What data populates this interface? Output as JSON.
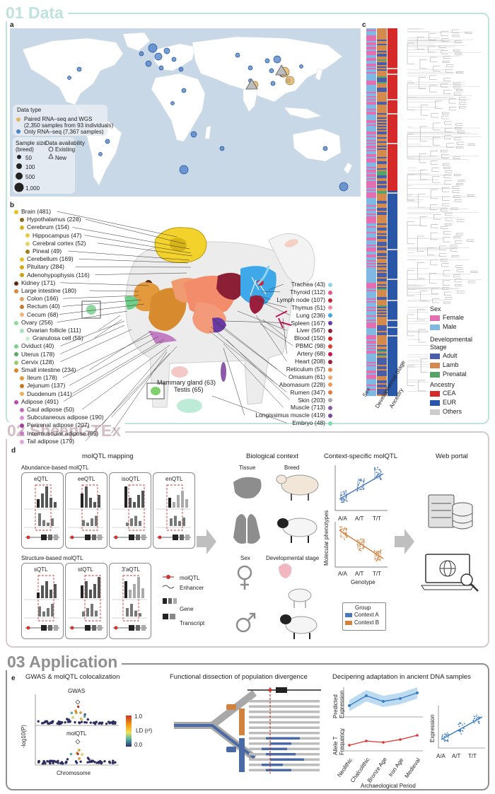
{
  "sections": {
    "s1": "01 Data",
    "s2": "02 SheepGTEx",
    "s3": "03 Application"
  },
  "panels": {
    "a": "a",
    "b": "b",
    "c": "c",
    "d": "d",
    "e": "e"
  },
  "map_legend": {
    "data_type_title": "Data type",
    "paired": "Paired RNA–seq and WGS",
    "paired_detail": "(2,350 samples from 93 individuals)",
    "only_rna": "Only RNA–seq (7,367 samples)",
    "sample_size_title": "Sample size",
    "sample_size_sub": "(breed)",
    "sizes": [
      "50",
      "100",
      "500",
      "1,000"
    ],
    "availability_title": "Data availability",
    "existing": "Existing",
    "new": "New"
  },
  "tissues_left": [
    {
      "label": "Brain (481)",
      "color": "#e7c21f",
      "indent": 0
    },
    {
      "label": "Hypothalamus (228)",
      "color": "#8a6a1c",
      "indent": 1
    },
    {
      "label": "Cerebrum (154)",
      "color": "#d4b21a",
      "indent": 1
    },
    {
      "label": "Hippocampus (47)",
      "color": "#e8c949",
      "indent": 2
    },
    {
      "label": "Cerebral cortex (52)",
      "color": "#e6d36c",
      "indent": 2
    },
    {
      "label": "Pineal (49)",
      "color": "#a07e16",
      "indent": 2
    },
    {
      "label": "Cerebellum (169)",
      "color": "#e3c12b",
      "indent": 1
    },
    {
      "label": "Pituitary (284)",
      "color": "#d9a617",
      "indent": 1
    },
    {
      "label": "Adenohypophysis (116)",
      "color": "#caa21c",
      "indent": 1
    },
    {
      "label": "Kidney (171)",
      "color": "#5a2a14",
      "indent": 0
    },
    {
      "label": "Large intestine (180)",
      "color": "#d98a3a",
      "indent": 0
    },
    {
      "label": "Colon (166)",
      "color": "#e8a060",
      "indent": 1
    },
    {
      "label": "Rectum (40)",
      "color": "#c97a2e",
      "indent": 1
    },
    {
      "label": "Cecum (68)",
      "color": "#efb57c",
      "indent": 1
    },
    {
      "label": "Ovary (256)",
      "color": "#8fd9a0",
      "indent": 0
    },
    {
      "label": "Ovarian follicle (111)",
      "color": "#a6e3b2",
      "indent": 1
    },
    {
      "label": "Granulosa cell (55)",
      "color": "#c7efcf",
      "indent": 2
    },
    {
      "label": "Oviduct (40)",
      "color": "#7fcf90",
      "indent": 0
    },
    {
      "label": "Uterus (178)",
      "color": "#5aa86a",
      "indent": 0
    },
    {
      "label": "Cervix (128)",
      "color": "#9acb6b",
      "indent": 0
    },
    {
      "label": "Small intestine (234)",
      "color": "#d7881f",
      "indent": 0
    },
    {
      "label": "Ileum (178)",
      "color": "#e39a3c",
      "indent": 1
    },
    {
      "label": "Jejunum (137)",
      "color": "#c77a21",
      "indent": 1
    },
    {
      "label": "Duodenum (141)",
      "color": "#eab060",
      "indent": 1
    },
    {
      "label": "Adipose (491)",
      "color": "#b24fb0",
      "indent": 0
    },
    {
      "label": "Caul adipose (50)",
      "color": "#c46ac2",
      "indent": 1
    },
    {
      "label": "Subcutaneous adipose (190)",
      "color": "#d690d4",
      "indent": 1
    },
    {
      "label": "Perirenal adipose (207)",
      "color": "#a13e9f",
      "indent": 1
    },
    {
      "label": "Intermuscular adipose (85)",
      "color": "#c77bc5",
      "indent": 1
    },
    {
      "label": "Tail adipose (179)",
      "color": "#e0a6de",
      "indent": 1
    }
  ],
  "tissues_right": [
    {
      "label": "Trachea (43)",
      "color": "#8ed4ef"
    },
    {
      "label": "Thyroid (112)",
      "color": "#e35b8d"
    },
    {
      "label": "Lymph node (107)",
      "color": "#c7263b"
    },
    {
      "label": "Thymus (51)",
      "color": "#f08fa6"
    },
    {
      "label": "Lung (236)",
      "color": "#3ea8e8"
    },
    {
      "label": "Spleen (167)",
      "color": "#6a3aa5"
    },
    {
      "label": "Liver (567)",
      "color": "#8a1f36"
    },
    {
      "label": "Blood (150)",
      "color": "#d52024"
    },
    {
      "label": "PBMC (98)",
      "color": "#e04030"
    },
    {
      "label": "Artery (68)",
      "color": "#c2185b"
    },
    {
      "label": "Heart (208)",
      "color": "#9b1e3d"
    },
    {
      "label": "Reticulum (57)",
      "color": "#e6884d"
    },
    {
      "label": "Omasum (61)",
      "color": "#f2a673"
    },
    {
      "label": "Abomasum (228)",
      "color": "#ee9a60"
    },
    {
      "label": "Rumen (347)",
      "color": "#e37a3f"
    },
    {
      "label": "Skin (203)",
      "color": "#a8a8a8"
    },
    {
      "label": "Muscle (713)",
      "color": "#8c5aa8"
    },
    {
      "label": "Longissimus muscle (419)",
      "color": "#7a4a9a"
    },
    {
      "label": "Embryo (48)",
      "color": "#7dd8b0"
    }
  ],
  "floating_labels": {
    "mammary": "Mammary gland (63)",
    "testis": "Testis (65)"
  },
  "c_axis_labels": [
    "Sex",
    "Developmental Stage",
    "Ancestry"
  ],
  "c_legend": {
    "sex_title": "Sex",
    "female": "Female",
    "male": "Male",
    "dev_title": "Developmental Stage",
    "adult": "Adult",
    "lamb": "Lamb",
    "prenatal": "Prenatal",
    "anc_title": "Ancestry",
    "cea": "CEA",
    "eur": "EUR",
    "others": "Others",
    "colors": {
      "female": "#e46fb0",
      "male": "#7fb8e3",
      "adult": "#4a5ea8",
      "lamb": "#d48a4c",
      "prenatal": "#56a36a",
      "cea": "#d62a2a",
      "eur": "#2a56a8",
      "others": "#cccccc"
    }
  },
  "d": {
    "molqtl_title": "molQTL mapping",
    "abundance_title": "Abundance-based molQTL",
    "structure_title": "Structure-based molQTL",
    "boxes_top": [
      "eQTL",
      "eeQTL",
      "isoQTL",
      "enQTL"
    ],
    "boxes_bottom": [
      "sQTL",
      "stQTL",
      "3'aQTL"
    ],
    "mini_legend": [
      "molQTL",
      "Enhancer",
      "Gene",
      "Transcript"
    ],
    "bio_title": "Biological context",
    "tissue": "Tissue",
    "breed": "Breed",
    "sex": "Sex",
    "dev_stage": "Developmental stage",
    "cs_title": "Context-specific molQTL",
    "ylabel": "Molecular phenotypes",
    "xticks": [
      "A/A",
      "A/T",
      "T/T"
    ],
    "xlabel": "Genotype",
    "group_title": "Group",
    "context_a": "Context A",
    "context_b": "Context B",
    "web_title": "Web portal",
    "colors": {
      "context_a": "#4a78b8",
      "context_b": "#d0823e"
    }
  },
  "e": {
    "t1": "GWAS & molQTL colocalization",
    "gwas": "GWAS",
    "molqtl": "molQTL",
    "ylabel": "-log10(P)",
    "chromosome": "Chromosome",
    "ld_max": "1.0",
    "ld_min": "0.0",
    "ld_label": "LD (r²)",
    "t2": "Functional dissection of population divergence",
    "t3": "Decipering adaptation in ancient DNA samples",
    "pred_expr": "Predicted Expression",
    "allele_freq": "Allele T Frequency",
    "periods": [
      "Neolithic",
      "Chalcolithic",
      "Bronze Age",
      "Iron Age",
      "Medieval"
    ],
    "arch_label": "Archaeological Period",
    "expression": "Expression",
    "xticks": [
      "A/A",
      "A/T",
      "T/T"
    ]
  }
}
